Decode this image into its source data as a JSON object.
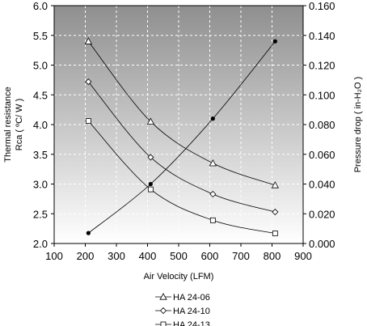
{
  "chart_data": {
    "type": "line",
    "xlabel": "Air Velocity (LFM)",
    "ylabel_left": [
      "Thermal resistance",
      "Rca ( ºC/ W )"
    ],
    "ylabel_right": "Pressure drop  ( in-H₂O )",
    "xlim": [
      100,
      900
    ],
    "xticks": [
      "100",
      "200",
      "300",
      "400",
      "500",
      "600",
      "700",
      "800",
      "900"
    ],
    "ylim_left": [
      2.0,
      6.0
    ],
    "yticks_left": [
      "2.0",
      "2.5",
      "3.0",
      "3.5",
      "4.0",
      "4.5",
      "5.0",
      "5.5",
      "6.0"
    ],
    "ylim_right": [
      0.0,
      0.16
    ],
    "yticks_right": [
      "0.000",
      "0.020",
      "0.040",
      "0.060",
      "0.080",
      "0.100",
      "0.120",
      "0.140",
      "0.160"
    ],
    "grid": true,
    "legend_position": "bottom-center",
    "background": "gradient-gray",
    "series": [
      {
        "name": "HA 24-06",
        "axis": "left",
        "marker": "triangle",
        "x": [
          210,
          410,
          610,
          810
        ],
        "y": [
          5.4,
          4.05,
          3.35,
          2.98
        ]
      },
      {
        "name": "HA 24-10",
        "axis": "left",
        "marker": "diamond",
        "x": [
          210,
          410,
          610,
          810
        ],
        "y": [
          4.72,
          3.45,
          2.83,
          2.53
        ]
      },
      {
        "name": "HA 24-13",
        "axis": "left",
        "marker": "square",
        "x": [
          210,
          410,
          610,
          810
        ],
        "y": [
          4.06,
          2.91,
          2.39,
          2.17
        ]
      },
      {
        "axis": "right",
        "marker": "dot",
        "x": [
          210,
          410,
          610,
          810
        ],
        "y": [
          0.007,
          0.04,
          0.084,
          0.136
        ]
      }
    ]
  }
}
